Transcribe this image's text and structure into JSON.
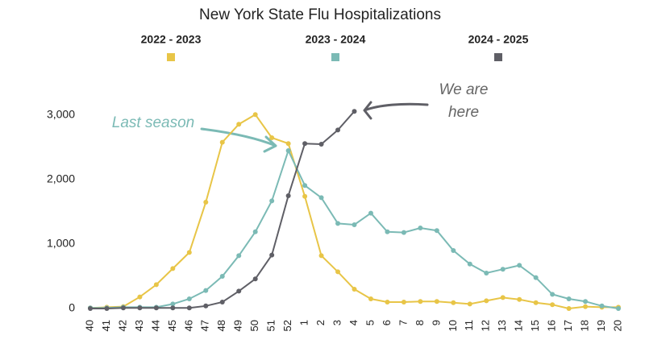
{
  "chart_data": {
    "type": "line",
    "title": "New York State Flu Hospitalizations",
    "categories": [
      "40",
      "41",
      "42",
      "43",
      "44",
      "45",
      "46",
      "47",
      "48",
      "49",
      "50",
      "51",
      "52",
      "1",
      "2",
      "3",
      "4",
      "5",
      "6",
      "7",
      "8",
      "9",
      "10",
      "11",
      "12",
      "13",
      "14",
      "15",
      "16",
      "17",
      "18",
      "19",
      "20"
    ],
    "series": [
      {
        "name": "2022 - 2023",
        "color": "#e8c547",
        "values": [
          10,
          20,
          30,
          180,
          370,
          620,
          870,
          1650,
          2580,
          2860,
          3010,
          2650,
          2560,
          1740,
          820,
          570,
          300,
          150,
          100,
          100,
          110,
          110,
          90,
          70,
          120,
          170,
          140,
          90,
          60,
          0,
          30,
          20,
          20
        ]
      },
      {
        "name": "2023 - 2024",
        "color": "#7bbab5",
        "values": [
          10,
          10,
          20,
          20,
          20,
          70,
          150,
          280,
          500,
          820,
          1190,
          1670,
          2450,
          1910,
          1720,
          1320,
          1300,
          1480,
          1190,
          1180,
          1250,
          1210,
          900,
          690,
          550,
          610,
          670,
          480,
          220,
          150,
          110,
          40,
          0
        ]
      },
      {
        "name": "2024 - 2025",
        "color": "#5f5f66",
        "values": [
          0,
          0,
          10,
          10,
          10,
          10,
          10,
          40,
          100,
          270,
          460,
          830,
          1750,
          2560,
          2550,
          2770,
          3060,
          null,
          null,
          null,
          null,
          null,
          null,
          null,
          null,
          null,
          null,
          null,
          null,
          null,
          null,
          null,
          null
        ]
      }
    ],
    "ylim": [
      0,
      3000
    ],
    "yticks": [
      0,
      {
        "value": 1000,
        "label": "1,000"
      },
      {
        "value": 2000,
        "label": "2,000"
      },
      {
        "value": 3000,
        "label": "3,000"
      }
    ],
    "grid": false,
    "legend": "top",
    "annotations": [
      "Last season",
      "We are",
      "here"
    ]
  }
}
